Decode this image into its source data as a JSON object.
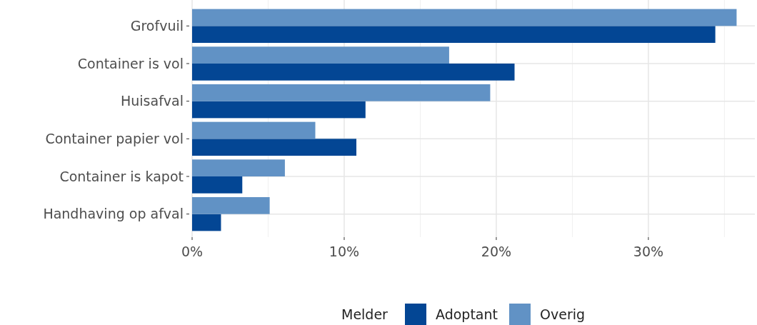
{
  "chart_data": {
    "type": "bar",
    "orientation": "horizontal",
    "categories": [
      "Grofvuil",
      "Container is vol",
      "Huisafval",
      "Container papier vol",
      "Container is kapot",
      "Handhaving op afval"
    ],
    "series": [
      {
        "name": "Adoptant",
        "color": "#034694",
        "values": [
          34.4,
          21.2,
          11.4,
          10.8,
          3.3,
          1.9
        ]
      },
      {
        "name": "Overig",
        "color": "#6192c5",
        "values": [
          35.8,
          16.9,
          19.6,
          8.1,
          6.1,
          5.1
        ]
      }
    ],
    "xlim": [
      0,
      37
    ],
    "xticks": [
      {
        "value": 0,
        "label": "0%"
      },
      {
        "value": 10,
        "label": "10%"
      },
      {
        "value": 20,
        "label": "20%"
      },
      {
        "value": 30,
        "label": "30%"
      }
    ],
    "grid": true,
    "legend": "bottom",
    "legend_title": "Melder"
  }
}
